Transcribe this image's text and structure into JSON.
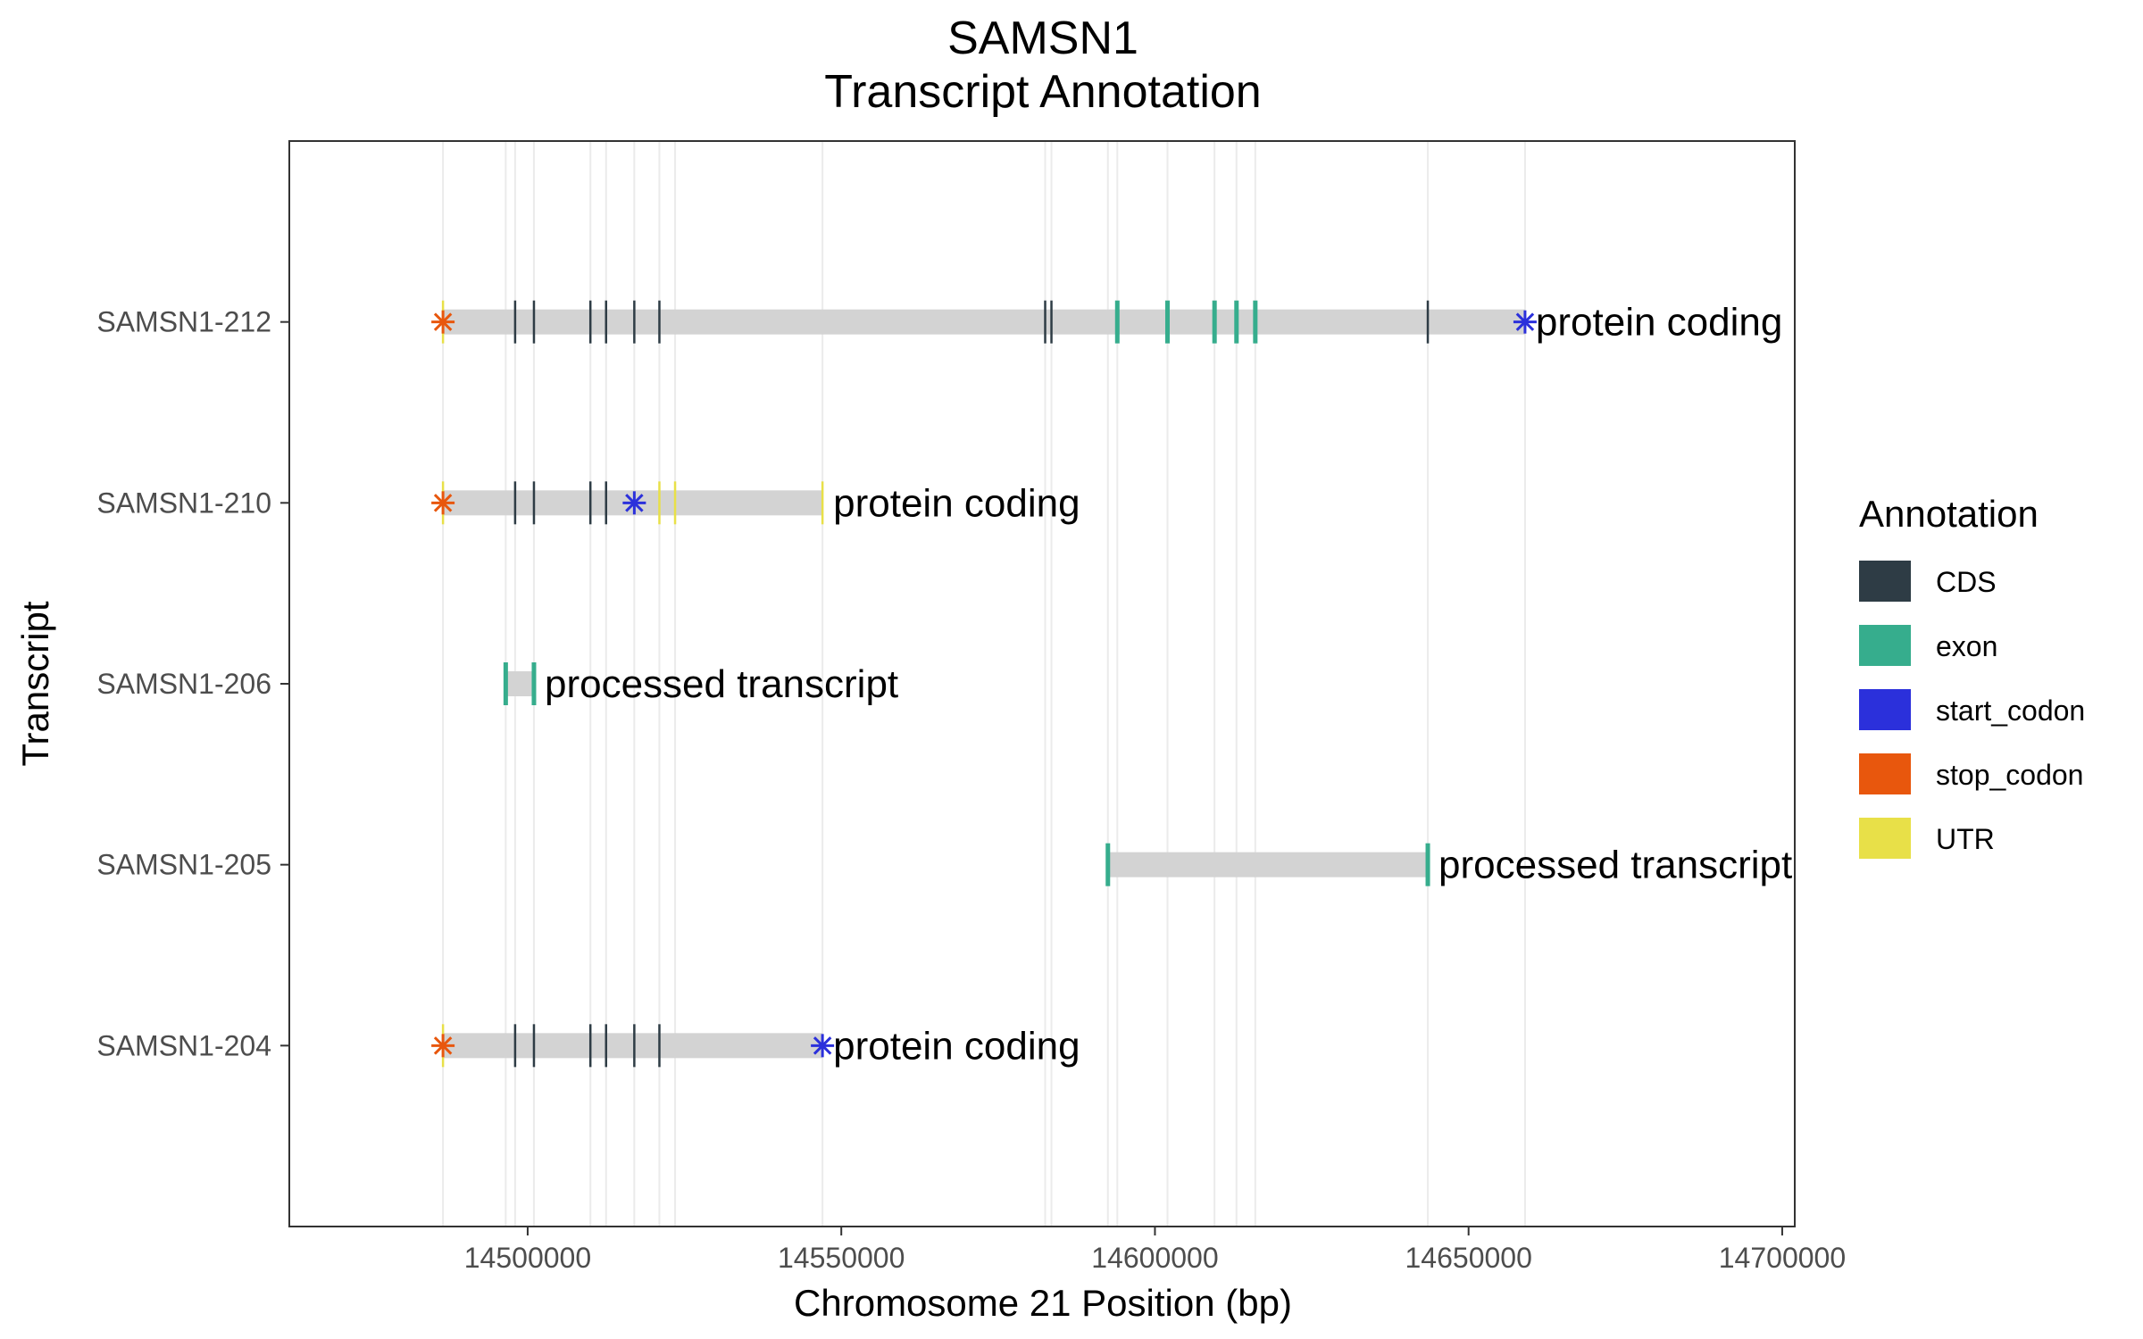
{
  "chart_data": {
    "type": "gene-track",
    "title": "SAMSN1",
    "subtitle": "Transcript Annotation",
    "xlabel": "Chromosome 21 Position (bp)",
    "ylabel": "Transcript",
    "xlim": [
      14462000,
      14702000
    ],
    "x_ticks": [
      14500000,
      14550000,
      14600000,
      14650000,
      14700000
    ],
    "x_tick_labels": [
      "14500000",
      "14550000",
      "14600000",
      "14650000",
      "14700000"
    ],
    "grid": true,
    "exon_grid_x": [
      14486500,
      14496500,
      14498000,
      14501000,
      14510000,
      14512500,
      14517000,
      14521000,
      14523500,
      14547000,
      14582500,
      14583500,
      14592500,
      14594000,
      14602000,
      14609500,
      14613000,
      14616000,
      14643500,
      14659000
    ],
    "legend": {
      "title": "Annotation",
      "position": "right",
      "items": [
        {
          "label": "CDS",
          "color": "#2e3c45"
        },
        {
          "label": "exon",
          "color": "#36ad8d"
        },
        {
          "label": "start_codon",
          "color": "#2b30db"
        },
        {
          "label": "stop_codon",
          "color": "#e8570d"
        },
        {
          "label": "UTR",
          "color": "#e8e048"
        }
      ]
    },
    "transcripts": [
      {
        "name": "SAMSN1-212",
        "biotype": "protein coding",
        "start": 14486500,
        "end": 14659000,
        "features": [
          {
            "type": "UTR",
            "x": 14486500
          },
          {
            "type": "CDS",
            "x": 14498000
          },
          {
            "type": "CDS",
            "x": 14501000
          },
          {
            "type": "CDS",
            "x": 14510000
          },
          {
            "type": "CDS",
            "x": 14512500
          },
          {
            "type": "CDS",
            "x": 14517000
          },
          {
            "type": "CDS",
            "x": 14521000
          },
          {
            "type": "CDS",
            "x": 14582500
          },
          {
            "type": "CDS",
            "x": 14583500
          },
          {
            "type": "exon",
            "x": 14594000
          },
          {
            "type": "exon",
            "x": 14602000
          },
          {
            "type": "exon",
            "x": 14609500
          },
          {
            "type": "exon",
            "x": 14613000
          },
          {
            "type": "exon",
            "x": 14616000
          },
          {
            "type": "CDS",
            "x": 14643500
          }
        ],
        "stop_codon": 14486500,
        "start_codon": 14659000
      },
      {
        "name": "SAMSN1-210",
        "biotype": "protein coding",
        "start": 14486500,
        "end": 14547000,
        "features": [
          {
            "type": "UTR",
            "x": 14486500
          },
          {
            "type": "CDS",
            "x": 14498000
          },
          {
            "type": "CDS",
            "x": 14501000
          },
          {
            "type": "CDS",
            "x": 14510000
          },
          {
            "type": "CDS",
            "x": 14512500
          },
          {
            "type": "UTR",
            "x": 14521000
          },
          {
            "type": "UTR",
            "x": 14523500
          },
          {
            "type": "UTR",
            "x": 14547000
          }
        ],
        "stop_codon": 14486500,
        "start_codon": 14517000
      },
      {
        "name": "SAMSN1-206",
        "biotype": "processed transcript",
        "start": 14496500,
        "end": 14501000,
        "features": [
          {
            "type": "exon",
            "x": 14496500
          },
          {
            "type": "exon",
            "x": 14501000
          }
        ]
      },
      {
        "name": "SAMSN1-205",
        "biotype": "processed transcript",
        "start": 14592500,
        "end": 14643500,
        "features": [
          {
            "type": "exon",
            "x": 14592500
          },
          {
            "type": "exon",
            "x": 14643500
          }
        ]
      },
      {
        "name": "SAMSN1-204",
        "biotype": "protein coding",
        "start": 14486500,
        "end": 14547000,
        "features": [
          {
            "type": "UTR",
            "x": 14486500
          },
          {
            "type": "CDS",
            "x": 14498000
          },
          {
            "type": "CDS",
            "x": 14501000
          },
          {
            "type": "CDS",
            "x": 14510000
          },
          {
            "type": "CDS",
            "x": 14512500
          },
          {
            "type": "CDS",
            "x": 14517000
          },
          {
            "type": "CDS",
            "x": 14521000
          }
        ],
        "stop_codon": 14486500,
        "start_codon": 14547000
      }
    ],
    "colors": {
      "intron_bar": "#d3d3d3",
      "grid": "#ebebeb",
      "panel_border": "#333333"
    }
  }
}
